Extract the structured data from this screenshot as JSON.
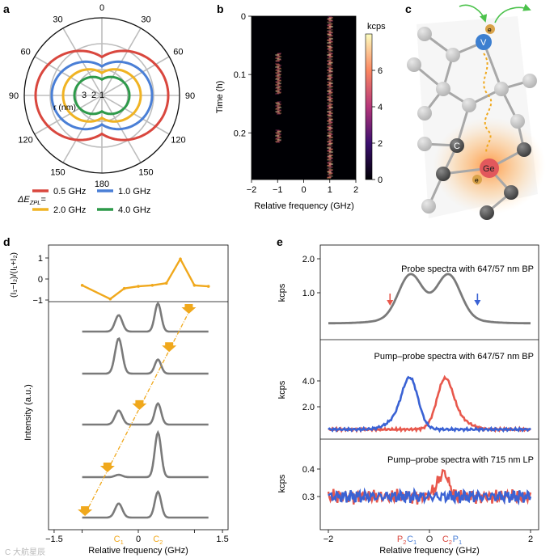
{
  "panels": {
    "a": "a",
    "b": "b",
    "c": "c",
    "d": "d",
    "e": "e"
  },
  "panel_a": {
    "angle_labels": [
      {
        "text": "0",
        "angle": 0
      },
      {
        "text": "30",
        "angle": 30
      },
      {
        "text": "60",
        "angle": 60
      },
      {
        "text": "90",
        "angle": 90
      },
      {
        "text": "120",
        "angle": 120
      },
      {
        "text": "150",
        "angle": 150
      },
      {
        "text": "180",
        "angle": 180
      },
      {
        "text": "150",
        "angle": 210
      },
      {
        "text": "120",
        "angle": 240
      },
      {
        "text": "90",
        "angle": 270
      },
      {
        "text": "60",
        "angle": 300
      },
      {
        "text": "30",
        "angle": 330
      }
    ],
    "radial_labels": [
      "3",
      "2",
      "1"
    ],
    "radial_axis_label": "r (nm)",
    "legend_prefix": "ΔE",
    "legend_sub": "ZPL",
    "legend_suffix": "=",
    "legend": [
      {
        "label": "0.5 GHz",
        "color": "#d9473e"
      },
      {
        "label": "1.0 GHz",
        "color": "#4a7fd6"
      },
      {
        "label": "2.0 GHz",
        "color": "#f0b323"
      },
      {
        "label": "4.0 GHz",
        "color": "#2e9a4a"
      }
    ]
  },
  "panel_b": {
    "ylabel": "Time (h)",
    "xlabel": "Relative frequency (GHz)",
    "xticks": [
      "−2",
      "−1",
      "0",
      "1",
      "2"
    ],
    "yticks": [
      "0",
      "0.1",
      "0.2"
    ],
    "colorbar_label": "kcps",
    "colorbar_ticks": [
      "0",
      "2",
      "4",
      "6"
    ]
  },
  "panel_c": {
    "atoms": {
      "V": "V",
      "C": "C",
      "Ge": "Ge",
      "e_top": "e",
      "e_bottom": "e"
    }
  },
  "panel_d": {
    "top_ylabel": "(I₁−I₂)/(I₁+I₂)",
    "top_yticks": [
      "1",
      "0",
      "−1"
    ],
    "ylabel": "Intensity (a.u.)",
    "xlabel": "Relative frequency (GHz)",
    "xticks": [
      "−1.5",
      "−1",
      "0",
      "1",
      "1.5"
    ],
    "c1": "C",
    "c1_sub": "1",
    "c2": "C",
    "c2_sub": "2",
    "contrast": {
      "x": [
        -1.0,
        -0.5,
        -0.25,
        0,
        0.25,
        0.5,
        0.75,
        1.0,
        1.25
      ],
      "y": [
        -0.3,
        -0.95,
        -0.45,
        -0.35,
        -0.3,
        -0.2,
        0.95,
        -0.3,
        -0.35
      ]
    },
    "traces": [
      {
        "c1_height": 0.35,
        "c2_height": 0.6,
        "marker_x": 0.9
      },
      {
        "c1_height": 0.75,
        "c2_height": 0.3,
        "marker_x": 0.55
      },
      {
        "c1_height": 0.3,
        "c2_height": 0.45,
        "marker_x": 0.02
      },
      {
        "c1_height": 0.05,
        "c2_height": 0.95,
        "marker_x": -0.55
      },
      {
        "c1_height": 0.3,
        "c2_height": 0.55,
        "marker_x": -0.95
      }
    ]
  },
  "panel_e": {
    "xlabel": "Relative frequency (GHz)",
    "xticks": [
      "−2",
      "0",
      "2"
    ],
    "sub": [
      {
        "title": "Probe spectra with 647/57 nm BP",
        "ylabel": "kcps",
        "yticks": [
          "2.0",
          "1.0"
        ]
      },
      {
        "title": "Pump–probe spectra with 647/57 nm BP",
        "ylabel": "kcps",
        "yticks": [
          "4.0",
          "2.0"
        ]
      },
      {
        "title": "Pump–probe spectra with 715 nm LP",
        "ylabel": "kcps",
        "yticks": [
          "0.4",
          "0.3"
        ]
      }
    ],
    "bottom_labels": [
      {
        "text": "P",
        "sub": "2",
        "color": "#d9473e",
        "x": -0.55
      },
      {
        "text": "C",
        "sub": "1",
        "color": "#4a7fd6",
        "x": -0.35
      },
      {
        "text": "O",
        "sub": "",
        "color": "#333333",
        "x": 0.0
      },
      {
        "text": "C",
        "sub": "2",
        "color": "#d9473e",
        "x": 0.35
      },
      {
        "text": "P",
        "sub": "1",
        "color": "#4a7fd6",
        "x": 0.55
      }
    ]
  },
  "colors": {
    "gray_trace": "#7a7a7a",
    "orange": "#f0a81c",
    "red": "#e8584c",
    "blue": "#3a62d4"
  },
  "watermark": "C  大航星辰"
}
